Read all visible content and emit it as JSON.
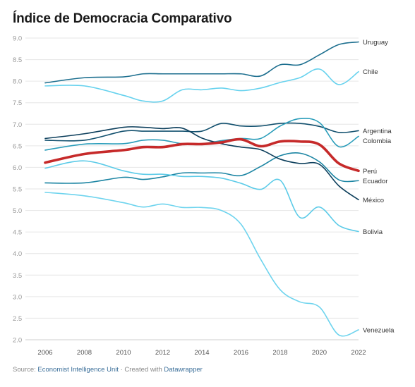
{
  "title": "Índice de Democracia Comparativo",
  "footer": {
    "source_label": "Source:",
    "source_name": "Economist Intelligence Unit",
    "separator": "· Created with",
    "tool_name": "Datawrapper"
  },
  "chart_data": {
    "type": "line",
    "title": "Índice de Democracia Comparativo",
    "xlabel": "",
    "ylabel": "",
    "ylim": [
      2.0,
      9.0
    ],
    "xlim": [
      2006,
      2022
    ],
    "grid": true,
    "legend": "direct labels at right end of lines",
    "y_ticks": [
      "9.0",
      "8.5",
      "8.0",
      "7.5",
      "7.0",
      "6.5",
      "6.0",
      "5.5",
      "5.0",
      "4.5",
      "4.0",
      "3.5",
      "3.0",
      "2.5",
      "2.0"
    ],
    "x_ticks": [
      "2006",
      "2008",
      "2010",
      "2012",
      "2014",
      "2016",
      "2018",
      "2020",
      "2022"
    ],
    "x": [
      2006,
      2008,
      2010,
      2011,
      2012,
      2013,
      2014,
      2015,
      2016,
      2017,
      2018,
      2019,
      2020,
      2021,
      2022
    ],
    "series": [
      {
        "name": "Uruguay",
        "color": "#1d6f8f",
        "width": 1.6,
        "values": [
          7.96,
          8.08,
          8.1,
          8.17,
          8.17,
          8.17,
          8.17,
          8.17,
          8.17,
          8.12,
          8.38,
          8.38,
          8.61,
          8.85,
          8.91
        ]
      },
      {
        "name": "Chile",
        "color": "#67d2ee",
        "width": 1.6,
        "values": [
          7.89,
          7.89,
          7.67,
          7.54,
          7.54,
          7.8,
          7.8,
          7.84,
          7.78,
          7.84,
          7.97,
          8.08,
          8.28,
          7.92,
          8.22
        ]
      },
      {
        "name": "Argentina",
        "color": "#12506e",
        "width": 1.6,
        "values": [
          6.63,
          6.63,
          6.84,
          6.84,
          6.84,
          6.84,
          6.84,
          7.02,
          6.96,
          6.96,
          7.02,
          7.02,
          6.95,
          6.81,
          6.85
        ]
      },
      {
        "name": "Colombia",
        "color": "#2a9dba",
        "width": 1.6,
        "values": [
          6.4,
          6.54,
          6.55,
          6.63,
          6.63,
          6.55,
          6.55,
          6.62,
          6.67,
          6.67,
          6.96,
          7.13,
          7.04,
          6.48,
          6.72
        ]
      },
      {
        "name": "Perú",
        "color": "#c62a2a",
        "width": 3.6,
        "values": [
          6.11,
          6.31,
          6.4,
          6.47,
          6.47,
          6.54,
          6.54,
          6.58,
          6.65,
          6.49,
          6.6,
          6.6,
          6.53,
          6.09,
          5.92
        ]
      },
      {
        "name": "Ecuador",
        "color": "#1c85a3",
        "width": 1.6,
        "values": [
          5.64,
          5.64,
          5.77,
          5.72,
          5.78,
          5.87,
          5.87,
          5.87,
          5.81,
          6.02,
          6.27,
          6.33,
          6.13,
          5.71,
          5.69
        ]
      },
      {
        "name": "México",
        "color": "#0d3f5c",
        "width": 1.6,
        "values": [
          6.67,
          6.78,
          6.93,
          6.93,
          6.9,
          6.91,
          6.68,
          6.55,
          6.47,
          6.41,
          6.19,
          6.09,
          6.07,
          5.57,
          5.25
        ]
      },
      {
        "name": "Bolivia",
        "color": "#5ccbe8",
        "width": 1.6,
        "values": [
          5.98,
          6.15,
          5.92,
          5.84,
          5.84,
          5.79,
          5.79,
          5.75,
          5.63,
          5.49,
          5.7,
          4.84,
          5.08,
          4.65,
          4.51
        ]
      },
      {
        "name": "Venezuela",
        "color": "#6fd4ee",
        "width": 1.6,
        "values": [
          5.42,
          5.34,
          5.18,
          5.08,
          5.15,
          5.07,
          5.07,
          5.0,
          4.68,
          3.87,
          3.16,
          2.88,
          2.76,
          2.11,
          2.23
        ]
      }
    ]
  }
}
